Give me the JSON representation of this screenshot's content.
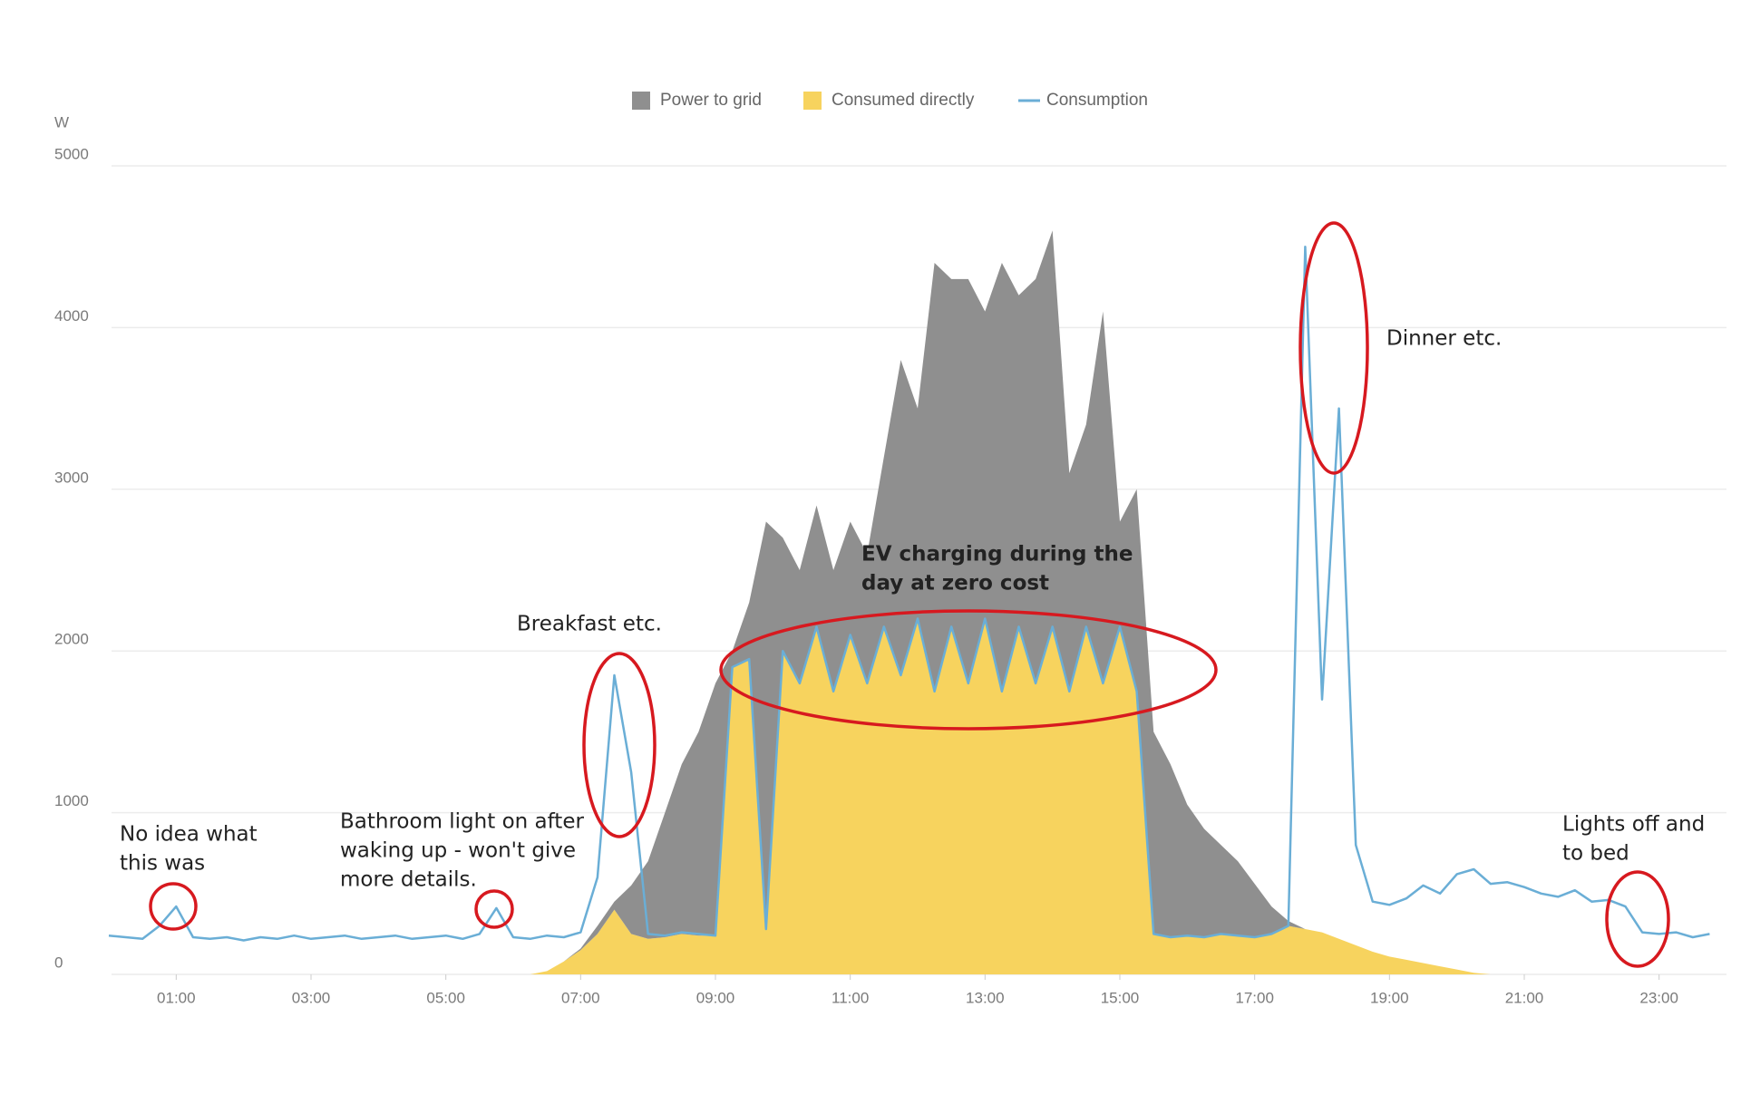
{
  "chart_data": {
    "type": "area",
    "y_label": "W",
    "x": [
      0,
      0.25,
      0.5,
      0.75,
      1,
      1.25,
      1.5,
      1.75,
      2,
      2.25,
      2.5,
      2.75,
      3,
      3.25,
      3.5,
      3.75,
      4,
      4.25,
      4.5,
      4.75,
      5,
      5.25,
      5.5,
      5.75,
      6,
      6.25,
      6.5,
      6.75,
      7,
      7.25,
      7.5,
      7.75,
      8,
      8.25,
      8.5,
      8.75,
      9,
      9.25,
      9.5,
      9.75,
      10,
      10.25,
      10.5,
      10.75,
      11,
      11.25,
      11.5,
      11.75,
      12,
      12.25,
      12.5,
      12.75,
      13,
      13.25,
      13.5,
      13.75,
      14,
      14.25,
      14.5,
      14.75,
      15,
      15.25,
      15.5,
      15.75,
      16,
      16.25,
      16.5,
      16.75,
      17,
      17.25,
      17.5,
      17.75,
      18,
      18.25,
      18.5,
      18.75,
      19,
      19.25,
      19.5,
      19.75,
      20,
      20.25,
      20.5,
      20.75,
      21,
      21.25,
      21.5,
      21.75,
      22,
      22.25,
      22.5,
      22.75,
      23,
      23.25,
      23.5,
      23.75
    ],
    "series": [
      {
        "name": "Power to grid",
        "type": "area",
        "color": "#8f8f8f",
        "values": [
          0,
          0,
          0,
          0,
          0,
          0,
          0,
          0,
          0,
          0,
          0,
          0,
          0,
          0,
          0,
          0,
          0,
          0,
          0,
          0,
          0,
          0,
          0,
          0,
          0,
          0,
          0,
          0,
          10,
          50,
          50,
          300,
          480,
          770,
          1050,
          1260,
          1560,
          100,
          350,
          2520,
          700,
          700,
          750,
          750,
          700,
          800,
          1050,
          1950,
          1300,
          2650,
          2150,
          2500,
          1900,
          2650,
          2050,
          2500,
          2450,
          1350,
          1250,
          2300,
          650,
          1250,
          1250,
          1070,
          810,
          670,
          550,
          460,
          330,
          170,
          30,
          0,
          0,
          0,
          0,
          0,
          0,
          0,
          0,
          0,
          0,
          0,
          0,
          0,
          0,
          0,
          0,
          0,
          0,
          0,
          0,
          0,
          0,
          0,
          0,
          0
        ]
      },
      {
        "name": "Consumed directly",
        "type": "area",
        "color": "#f7d35e",
        "values": [
          0,
          0,
          0,
          0,
          0,
          0,
          0,
          0,
          0,
          0,
          0,
          0,
          0,
          0,
          0,
          0,
          0,
          0,
          0,
          0,
          0,
          0,
          0,
          0,
          0,
          0,
          20,
          80,
          150,
          250,
          400,
          250,
          220,
          230,
          250,
          240,
          240,
          1900,
          1950,
          280,
          2000,
          1800,
          2150,
          1750,
          2100,
          1800,
          2150,
          1850,
          2200,
          1750,
          2150,
          1800,
          2200,
          1750,
          2150,
          1800,
          2150,
          1750,
          2150,
          1800,
          2150,
          1750,
          250,
          230,
          240,
          230,
          250,
          240,
          230,
          250,
          300,
          280,
          260,
          220,
          180,
          140,
          110,
          90,
          70,
          50,
          30,
          10,
          0,
          0,
          0,
          0,
          0,
          0,
          0,
          0,
          0,
          0,
          0,
          0,
          0,
          0
        ]
      },
      {
        "name": "Consumption",
        "type": "line",
        "color": "#6aaed6",
        "values": [
          240,
          230,
          220,
          300,
          420,
          230,
          220,
          230,
          210,
          230,
          220,
          240,
          220,
          230,
          240,
          220,
          230,
          240,
          220,
          230,
          240,
          220,
          250,
          410,
          230,
          220,
          240,
          230,
          260,
          600,
          1850,
          1250,
          250,
          240,
          260,
          250,
          240,
          1900,
          1950,
          280,
          2000,
          1800,
          2150,
          1750,
          2100,
          1800,
          2150,
          1850,
          2200,
          1750,
          2150,
          1800,
          2200,
          1750,
          2150,
          1800,
          2150,
          1750,
          2150,
          1800,
          2150,
          1750,
          250,
          230,
          240,
          230,
          250,
          240,
          230,
          250,
          300,
          4500,
          1700,
          3500,
          800,
          450,
          430,
          470,
          550,
          500,
          620,
          650,
          560,
          570,
          540,
          500,
          480,
          520,
          450,
          460,
          420,
          260,
          250,
          260,
          230,
          250
        ]
      }
    ],
    "xlim": [
      0,
      24
    ],
    "xticks": [
      {
        "value": 1,
        "label": "01:00"
      },
      {
        "value": 3,
        "label": "03:00"
      },
      {
        "value": 5,
        "label": "05:00"
      },
      {
        "value": 7,
        "label": "07:00"
      },
      {
        "value": 9,
        "label": "09:00"
      },
      {
        "value": 11,
        "label": "11:00"
      },
      {
        "value": 13,
        "label": "13:00"
      },
      {
        "value": 15,
        "label": "15:00"
      },
      {
        "value": 17,
        "label": "17:00"
      },
      {
        "value": 19,
        "label": "19:00"
      },
      {
        "value": 21,
        "label": "21:00"
      },
      {
        "value": 23,
        "label": "23:00"
      }
    ],
    "ylim": [
      0,
      5000
    ],
    "yticks": [
      0,
      1000,
      2000,
      3000,
      4000,
      5000
    ],
    "grid": true,
    "legend": "top",
    "annotations": [
      {
        "text": [
          "No idea what",
          "this was"
        ]
      },
      {
        "text": [
          "Bathroom light on after",
          "waking up - won't give",
          "more details."
        ]
      },
      {
        "text": [
          "Breakfast etc."
        ]
      },
      {
        "text": [
          "EV charging during the",
          "day at zero cost"
        ]
      },
      {
        "text": [
          "Dinner etc."
        ]
      },
      {
        "text": [
          "Lights off and",
          "to bed"
        ]
      }
    ]
  }
}
